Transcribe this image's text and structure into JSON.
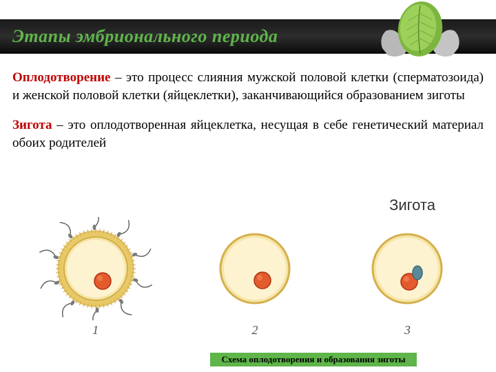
{
  "header": {
    "title": "Этапы эмбрионального периода",
    "title_color": "#5fb54a",
    "bar_gradient": [
      "#1a1a1a",
      "#2d2d2d",
      "#0a0a0a"
    ]
  },
  "paragraphs": [
    {
      "term": "Оплодотворение",
      "dash": " – ",
      "body": "это процесс слияния мужской половой клетки (сперматозоида) и женской половой клетки (яйцеклетки), заканчивающийся образованием зиготы"
    },
    {
      "term": "Зигота",
      "dash": " – ",
      "body": "это оплодотворенная яйцеклетка, несущая в себе генетический материал обоих родителей"
    }
  ],
  "diagram": {
    "type": "infographic",
    "top_label": "Зигота",
    "caption": "Схема оплодотворения и образования зиготы",
    "caption_bg": "#5fb54a",
    "cell_colors": {
      "zona_outer": "#e8c968",
      "zona_inner": "#d4af4a",
      "membrane": "#f5e5a8",
      "cytoplasm": "#fdf3d0",
      "nucleus_fill": "#e35b2d",
      "nucleus_stroke": "#b03010",
      "sperm_stroke": "#5a5a5a",
      "sperm_head": "#7a7a7a",
      "male_pronucleus": "#5a8a9a"
    },
    "stages": [
      {
        "num": "1",
        "has_zona": true,
        "sperm_around": true,
        "male_pn": false
      },
      {
        "num": "2",
        "has_zona": false,
        "sperm_around": false,
        "male_pn": false
      },
      {
        "num": "3",
        "has_zona": false,
        "sperm_around": false,
        "male_pn": true
      }
    ]
  },
  "term_color": "#c00000",
  "body_text_color": "#000000",
  "body_fontsize": 19
}
